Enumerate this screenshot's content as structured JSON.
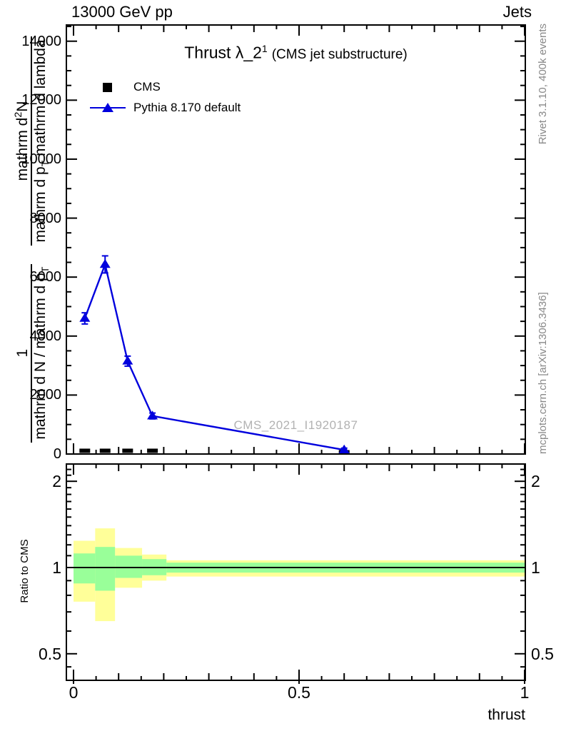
{
  "header": {
    "left": "13000 GeV pp",
    "right": "Jets"
  },
  "title": {
    "text": "Thrust λ_2",
    "sup": "1",
    "suffix": "(CMS jet substructure)"
  },
  "legend": {
    "cms": "CMS",
    "pythia": "Pythia 8.170 default"
  },
  "ylabel": {
    "f1num": "1",
    "f1den_main": "mathrm d N / mathrm d p",
    "f1den_sub": "T",
    "f2num_a": "mathrm d",
    "f2num_sup": "2",
    "f2num_b": "N",
    "f2den_a": "mathrm d p",
    "f2den_sub": "T",
    "f2den_b": " mathrm d lambda"
  },
  "watermark": "CMS_2021_I1920187",
  "side_notes": {
    "rivet": "Rivet 3.1.10,  400k events",
    "mcplots": "mcplots.cern.ch [arXiv:1306.3436]"
  },
  "ratio_label": "Ratio to CMS",
  "xlabel": "thrust",
  "colors": {
    "pythia_blue": "#0000dd",
    "cms_black": "#000000",
    "band_outer_yellow": "#ffff99",
    "band_inner_green": "#99ff99",
    "gray_text": "#888888"
  },
  "chart_data": [
    {
      "type": "line",
      "panel": "main",
      "title": "Thrust λ_2^1 (CMS jet substructure)",
      "xlabel": "thrust",
      "ylabel": "1/(mathrm d N/mathrm d p_T) · mathrm d^2 N/(mathrm d p_T mathrm d lambda)",
      "xlim": [
        0,
        1
      ],
      "ylim": [
        0,
        14550
      ],
      "xticks": [
        0,
        0.5,
        1
      ],
      "yticks": [
        0,
        2000,
        4000,
        6000,
        8000,
        10000,
        12000,
        14000
      ],
      "grid": false,
      "legend_position": "top-left-inside",
      "series": [
        {
          "name": "CMS",
          "type": "scatter",
          "marker": "filled-square",
          "color": "#000000",
          "x": [
            0.025,
            0.07,
            0.12,
            0.175,
            0.6
          ],
          "y": [
            110,
            110,
            110,
            110,
            60
          ]
        },
        {
          "name": "Pythia 8.170 default",
          "type": "line-scatter",
          "marker": "filled-triangle",
          "color": "#0000dd",
          "x": [
            0.025,
            0.07,
            0.12,
            0.175,
            0.6
          ],
          "y": [
            4600,
            6430,
            3150,
            1290,
            140
          ],
          "yerr": [
            190,
            290,
            170,
            100,
            60
          ]
        }
      ]
    },
    {
      "type": "ratio-band",
      "panel": "ratio",
      "ylabel": "Ratio to CMS",
      "yscale": "log",
      "ylim": [
        0.4,
        2.29
      ],
      "xlim": [
        0,
        1
      ],
      "xticks": [
        0,
        0.5,
        1
      ],
      "yticks": [
        0.5,
        1,
        2
      ],
      "reference_line": 1,
      "bands": {
        "bin_edges": [
          0,
          0.048,
          0.092,
          0.152,
          0.206,
          1.0
        ],
        "outer_color": "#ffff99",
        "inner_color": "#99ff99",
        "outer": [
          [
            0.76,
            1.24
          ],
          [
            0.65,
            1.37
          ],
          [
            0.85,
            1.17
          ],
          [
            0.9,
            1.11
          ],
          [
            0.93,
            1.06
          ]
        ],
        "inner": [
          [
            0.88,
            1.12
          ],
          [
            0.83,
            1.18
          ],
          [
            0.92,
            1.1
          ],
          [
            0.94,
            1.07
          ],
          [
            0.96,
            1.04
          ]
        ]
      }
    }
  ]
}
